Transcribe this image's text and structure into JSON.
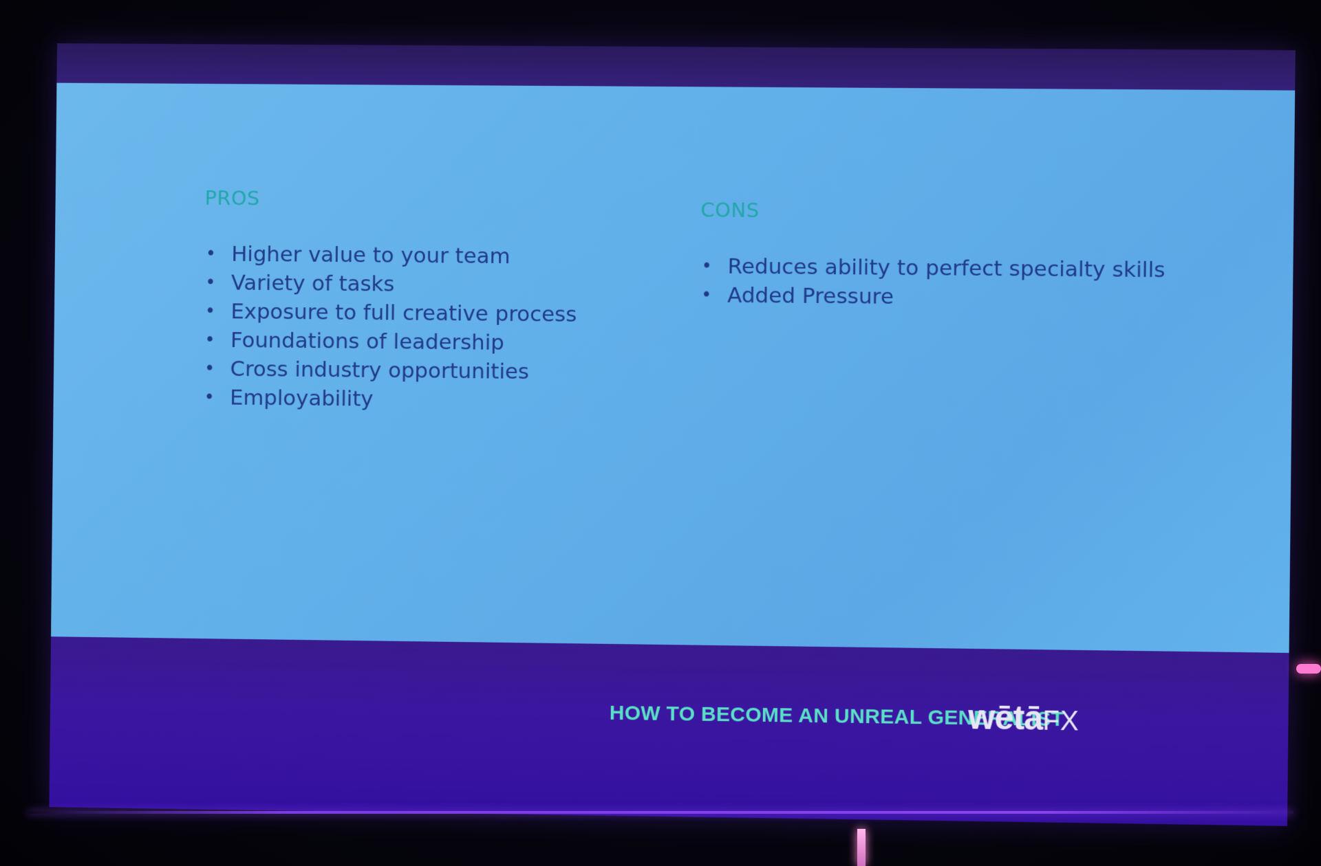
{
  "slide": {
    "pros": {
      "heading": "PROS",
      "items": [
        "Higher value to your team",
        "Variety of tasks",
        "Exposure to full creative process",
        "Foundations of leadership",
        "Cross industry opportunities",
        "Employability"
      ]
    },
    "cons": {
      "heading": "CONS",
      "items": [
        "Reduces ability to perfect specialty skills",
        "Added Pressure"
      ]
    },
    "bullet_glyph": "•"
  },
  "footer": {
    "title": "HOW TO BECOME AN UNREAL GENERALIST",
    "logo_word": "wētā",
    "logo_suffix": "FX"
  },
  "colors": {
    "slide_background": "#62b0ea",
    "heading": "#22a7a8",
    "body_text": "#203a8a",
    "footer_background": "#3b16a0",
    "footer_title": "#5be0c8",
    "logo": "#e8e6f6"
  }
}
